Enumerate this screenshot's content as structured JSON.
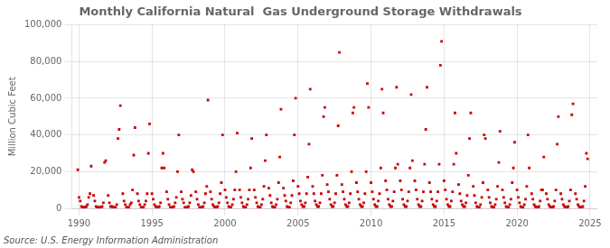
{
  "chart_data": {
    "type": "scatter",
    "title": "Monthly California Natural  Gas Underground Storage Withdrawals",
    "ylabel": "Million Cubic Feet",
    "source": "Source: U.S. Energy Information Administration",
    "color": "#cc0000",
    "marker": "square",
    "grid": true,
    "xlim": [
      1989.5,
      2025.5
    ],
    "ylim": [
      0,
      100000
    ],
    "xticks": [
      1990,
      1995,
      2000,
      2005,
      2010,
      2015,
      2020,
      2025
    ],
    "yticks": [
      0,
      {
        "value": 20000,
        "label": "20,000"
      },
      {
        "value": 40000,
        "label": "40,000"
      },
      {
        "value": 60000,
        "label": "60,000"
      },
      {
        "value": 80000,
        "label": "80,000"
      },
      {
        "value": 100000,
        "label": "100,000"
      }
    ],
    "x": [
      1989.917,
      1990.0,
      1990.083,
      1990.167,
      1990.25,
      1990.333,
      1990.417,
      1990.5,
      1990.583,
      1990.667,
      1990.75,
      1990.833,
      1991.0,
      1991.083,
      1991.167,
      1991.25,
      1991.333,
      1991.417,
      1991.5,
      1991.583,
      1991.667,
      1991.75,
      1991.833,
      1992.0,
      1992.083,
      1992.167,
      1992.25,
      1992.333,
      1992.417,
      1992.5,
      1992.583,
      1992.667,
      1992.75,
      1992.833,
      1993.0,
      1993.083,
      1993.167,
      1993.25,
      1993.333,
      1993.417,
      1993.5,
      1993.583,
      1993.667,
      1993.75,
      1993.833,
      1994.0,
      1994.083,
      1994.167,
      1994.25,
      1994.333,
      1994.417,
      1994.5,
      1994.583,
      1994.667,
      1994.75,
      1994.833,
      1995.0,
      1995.083,
      1995.167,
      1995.25,
      1995.333,
      1995.417,
      1995.5,
      1995.583,
      1995.667,
      1995.75,
      1995.833,
      1996.0,
      1996.083,
      1996.167,
      1996.25,
      1996.333,
      1996.417,
      1996.5,
      1996.583,
      1996.667,
      1996.75,
      1996.833,
      1997.0,
      1997.083,
      1997.167,
      1997.25,
      1997.333,
      1997.417,
      1997.5,
      1997.583,
      1997.667,
      1997.75,
      1997.833,
      1998.0,
      1998.083,
      1998.167,
      1998.25,
      1998.333,
      1998.417,
      1998.5,
      1998.583,
      1998.667,
      1998.75,
      1998.833,
      1999.0,
      1999.083,
      1999.167,
      1999.25,
      1999.333,
      1999.417,
      1999.5,
      1999.583,
      1999.667,
      1999.75,
      1999.833,
      2000.0,
      2000.083,
      2000.167,
      2000.25,
      2000.333,
      2000.417,
      2000.5,
      2000.583,
      2000.667,
      2000.75,
      2000.833,
      2001.0,
      2001.083,
      2001.167,
      2001.25,
      2001.333,
      2001.417,
      2001.5,
      2001.583,
      2001.667,
      2001.75,
      2001.833,
      2002.0,
      2002.083,
      2002.167,
      2002.25,
      2002.333,
      2002.417,
      2002.5,
      2002.583,
      2002.667,
      2002.75,
      2002.833,
      2003.0,
      2003.083,
      2003.167,
      2003.25,
      2003.333,
      2003.417,
      2003.5,
      2003.583,
      2003.667,
      2003.75,
      2003.833,
      2004.0,
      2004.083,
      2004.167,
      2004.25,
      2004.333,
      2004.417,
      2004.5,
      2004.583,
      2004.667,
      2004.75,
      2004.833,
      2005.0,
      2005.083,
      2005.167,
      2005.25,
      2005.333,
      2005.417,
      2005.5,
      2005.583,
      2005.667,
      2005.75,
      2005.833,
      2006.0,
      2006.083,
      2006.167,
      2006.25,
      2006.333,
      2006.417,
      2006.5,
      2006.583,
      2006.667,
      2006.75,
      2006.833,
      2007.0,
      2007.083,
      2007.167,
      2007.25,
      2007.333,
      2007.417,
      2007.5,
      2007.583,
      2007.667,
      2007.75,
      2007.833,
      2008.0,
      2008.083,
      2008.167,
      2008.25,
      2008.333,
      2008.417,
      2008.5,
      2008.583,
      2008.667,
      2008.75,
      2008.833,
      2009.0,
      2009.083,
      2009.167,
      2009.25,
      2009.333,
      2009.417,
      2009.5,
      2009.583,
      2009.667,
      2009.75,
      2009.833,
      2010.0,
      2010.083,
      2010.167,
      2010.25,
      2010.333,
      2010.417,
      2010.5,
      2010.583,
      2010.667,
      2010.75,
      2010.833,
      2011.0,
      2011.083,
      2011.167,
      2011.25,
      2011.333,
      2011.417,
      2011.5,
      2011.583,
      2011.667,
      2011.75,
      2011.833,
      2012.0,
      2012.083,
      2012.167,
      2012.25,
      2012.333,
      2012.417,
      2012.5,
      2012.583,
      2012.667,
      2012.75,
      2012.833,
      2013.0,
      2013.083,
      2013.167,
      2013.25,
      2013.333,
      2013.417,
      2013.5,
      2013.583,
      2013.667,
      2013.75,
      2013.833,
      2014.0,
      2014.083,
      2014.167,
      2014.25,
      2014.333,
      2014.417,
      2014.5,
      2014.583,
      2014.667,
      2014.75,
      2014.833,
      2015.0,
      2015.083,
      2015.167,
      2015.25,
      2015.333,
      2015.417,
      2015.5,
      2015.583,
      2015.667,
      2015.75,
      2015.833,
      2016.0,
      2016.083,
      2016.167,
      2016.25,
      2016.333,
      2016.417,
      2016.5,
      2016.583,
      2016.667,
      2016.75,
      2016.833,
      2017.0,
      2017.083,
      2017.167,
      2017.25,
      2017.333,
      2017.417,
      2017.5,
      2017.583,
      2017.667,
      2017.75,
      2017.833,
      2018.0,
      2018.083,
      2018.167,
      2018.25,
      2018.333,
      2018.417,
      2018.5,
      2018.583,
      2018.667,
      2018.75,
      2018.833,
      2019.0,
      2019.083,
      2019.167,
      2019.25,
      2019.333,
      2019.417,
      2019.5,
      2019.583,
      2019.667,
      2019.75,
      2019.833,
      2020.0,
      2020.083,
      2020.167,
      2020.25,
      2020.333,
      2020.417,
      2020.5,
      2020.583,
      2020.667,
      2020.75,
      2020.833,
      2021.0,
      2021.083,
      2021.167,
      2021.25,
      2021.333,
      2021.417,
      2021.5,
      2021.583,
      2021.667,
      2021.75,
      2021.833,
      2022.0,
      2022.083,
      2022.167,
      2022.25,
      2022.333,
      2022.417,
      2022.5,
      2022.583,
      2022.667,
      2022.75,
      2022.833,
      2023.0,
      2023.083,
      2023.167,
      2023.25,
      2023.333,
      2023.417,
      2023.5,
      2023.583,
      2023.667,
      2023.75,
      2023.833,
      2024.0,
      2024.083,
      2024.167,
      2024.25,
      2024.333,
      2024.417,
      2024.5,
      2024.583,
      2024.667,
      2024.75,
      2024.833
    ],
    "values": [
      21000,
      6000,
      4000,
      1000,
      500,
      500,
      500,
      1000,
      2000,
      6000,
      8000,
      23000,
      7000,
      4000,
      1000,
      500,
      500,
      500,
      500,
      1000,
      3000,
      25000,
      26000,
      7000,
      3000,
      1000,
      1000,
      500,
      500,
      500,
      2000,
      38000,
      43000,
      56000,
      8000,
      4000,
      2000,
      500,
      500,
      500,
      2000,
      3000,
      10000,
      29000,
      44000,
      8000,
      4000,
      2000,
      500,
      500,
      500,
      2000,
      4000,
      8000,
      30000,
      46000,
      8000,
      5000,
      2000,
      1000,
      500,
      500,
      1000,
      3000,
      22000,
      30000,
      22000,
      9000,
      5000,
      2000,
      500,
      500,
      500,
      1000,
      3000,
      6000,
      20000,
      40000,
      9000,
      5000,
      3000,
      500,
      500,
      500,
      1000,
      3000,
      7000,
      21000,
      20000,
      9000,
      5000,
      2000,
      500,
      500,
      500,
      1000,
      3000,
      8000,
      12000,
      59000,
      9000,
      5000,
      2000,
      1000,
      500,
      500,
      1000,
      3000,
      8000,
      14000,
      40000,
      10000,
      6000,
      3000,
      1000,
      500,
      500,
      2000,
      5000,
      10000,
      20000,
      41000,
      10000,
      6000,
      3000,
      1000,
      500,
      500,
      2000,
      5000,
      10000,
      22000,
      38000,
      10000,
      6000,
      3000,
      1000,
      500,
      500,
      2000,
      5000,
      12000,
      26000,
      40000,
      11000,
      7000,
      3000,
      1000,
      500,
      500,
      2000,
      5000,
      14000,
      28000,
      54000,
      11000,
      7000,
      4000,
      1000,
      500,
      500,
      3000,
      7000,
      15000,
      40000,
      60000,
      12000,
      8000,
      4000,
      2000,
      1000,
      1000,
      3000,
      8000,
      17000,
      35000,
      65000,
      12000,
      8000,
      4000,
      2000,
      1000,
      1000,
      3000,
      8000,
      18000,
      50000,
      55000,
      13000,
      9000,
      5000,
      2000,
      1000,
      1000,
      3000,
      8000,
      18000,
      45000,
      85000,
      13000,
      9000,
      5000,
      2000,
      1000,
      1000,
      3000,
      8000,
      20000,
      52000,
      55000,
      14000,
      9000,
      5000,
      2000,
      1000,
      1000,
      3000,
      8000,
      20000,
      68000,
      55000,
      14000,
      9000,
      5000,
      2000,
      1000,
      1000,
      4000,
      8000,
      22000,
      65000,
      52000,
      15000,
      10000,
      5000,
      2000,
      1000,
      1000,
      4000,
      9000,
      22000,
      66000,
      24000,
      15000,
      10000,
      5000,
      2000,
      1000,
      1000,
      4000,
      9000,
      22000,
      62000,
      26000,
      15000,
      10000,
      5000,
      2000,
      1000,
      1000,
      4000,
      9000,
      24000,
      43000,
      66000,
      14000,
      9000,
      5000,
      2000,
      1000,
      1000,
      4000,
      9000,
      24000,
      78000,
      91000,
      15000,
      10000,
      5000,
      2000,
      1000,
      1000,
      4000,
      9000,
      24000,
      52000,
      30000,
      13000,
      8000,
      4000,
      2000,
      1000,
      1000,
      3000,
      7000,
      18000,
      38000,
      52000,
      12000,
      7000,
      3000,
      1000,
      500,
      500,
      2000,
      6000,
      14000,
      40000,
      38000,
      10000,
      6000,
      3000,
      1000,
      500,
      500,
      2000,
      5000,
      12000,
      25000,
      42000,
      10000,
      6000,
      3000,
      1000,
      500,
      500,
      2000,
      5000,
      14000,
      22000,
      36000,
      10000,
      6000,
      3000,
      1000,
      500,
      500,
      2000,
      5000,
      12000,
      40000,
      22000,
      8000,
      5000,
      2000,
      1000,
      500,
      500,
      1000,
      4000,
      10000,
      10000,
      28000,
      8000,
      5000,
      2000,
      1000,
      500,
      500,
      1000,
      4000,
      10000,
      35000,
      50000,
      8000,
      5000,
      2000,
      1000,
      500,
      500,
      1000,
      4000,
      10000,
      51000,
      57000,
      8000,
      5000,
      2000,
      1000,
      500,
      500,
      1000,
      4000,
      12000,
      30000,
      27000
    ]
  }
}
